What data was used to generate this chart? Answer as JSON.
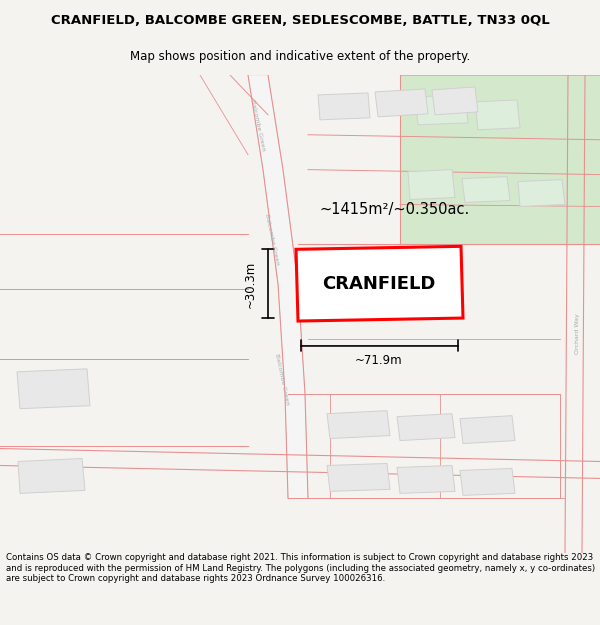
{
  "title_line1": "CRANFIELD, BALCOMBE GREEN, SEDLESCOMBE, BATTLE, TN33 0QL",
  "title_line2": "Map shows position and indicative extent of the property.",
  "property_label": "CRANFIELD",
  "area_label": "~1415m²/~0.350ac.",
  "width_label": "~71.9m",
  "height_label": "~30.3m",
  "footer_text": "Contains OS data © Crown copyright and database right 2021. This information is subject to Crown copyright and database rights 2023 and is reproduced with the permission of HM Land Registry. The polygons (including the associated geometry, namely x, y co-ordinates) are subject to Crown copyright and database rights 2023 Ordnance Survey 100026316.",
  "bg_color": "#f5f3f0",
  "map_bg": "#ffffff",
  "property_fill": "#ffffff",
  "property_edge": "#ff0000",
  "green_area_fill": "#d4e8cc",
  "building_fill": "#e8e8e8",
  "building_edge": "#d0d0d0",
  "road_line_color": "#e89090",
  "dim_line_color": "#000000",
  "text_color": "#000000"
}
